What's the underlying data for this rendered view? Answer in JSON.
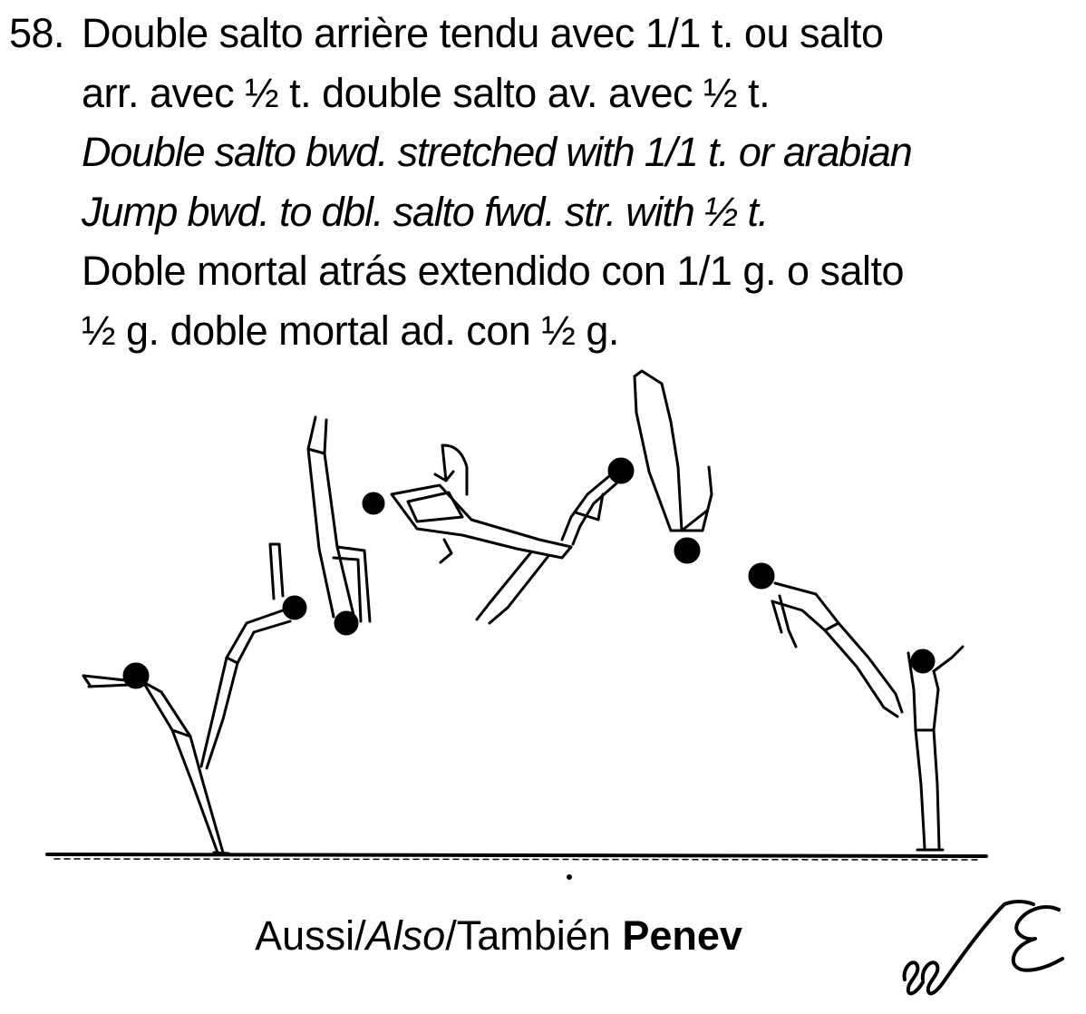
{
  "element": {
    "number": "58.",
    "lines": {
      "fr_1": "Double salto arrière tendu avec 1/1 t. ou salto",
      "fr_2": "arr. avec ½ t. double salto av. avec ½ t.",
      "en_1": "Double salto bwd. stretched with 1/1 t. or arabian",
      "en_2": "Jump bwd. to dbl. salto fwd. str. with ½ t.",
      "es_1": "Doble mortal atrás extendido con 1/1 g. o salto",
      "es_2": "½ g. doble mortal ad. con ½ g."
    }
  },
  "caption": {
    "aussi": "Aussi",
    "sep1": "/",
    "also": "Also",
    "sep2": "/",
    "tambien": "También",
    "name": "Penev"
  },
  "signature_letters": "eeE",
  "colors": {
    "ink": "#000000",
    "background": "#ffffff"
  }
}
